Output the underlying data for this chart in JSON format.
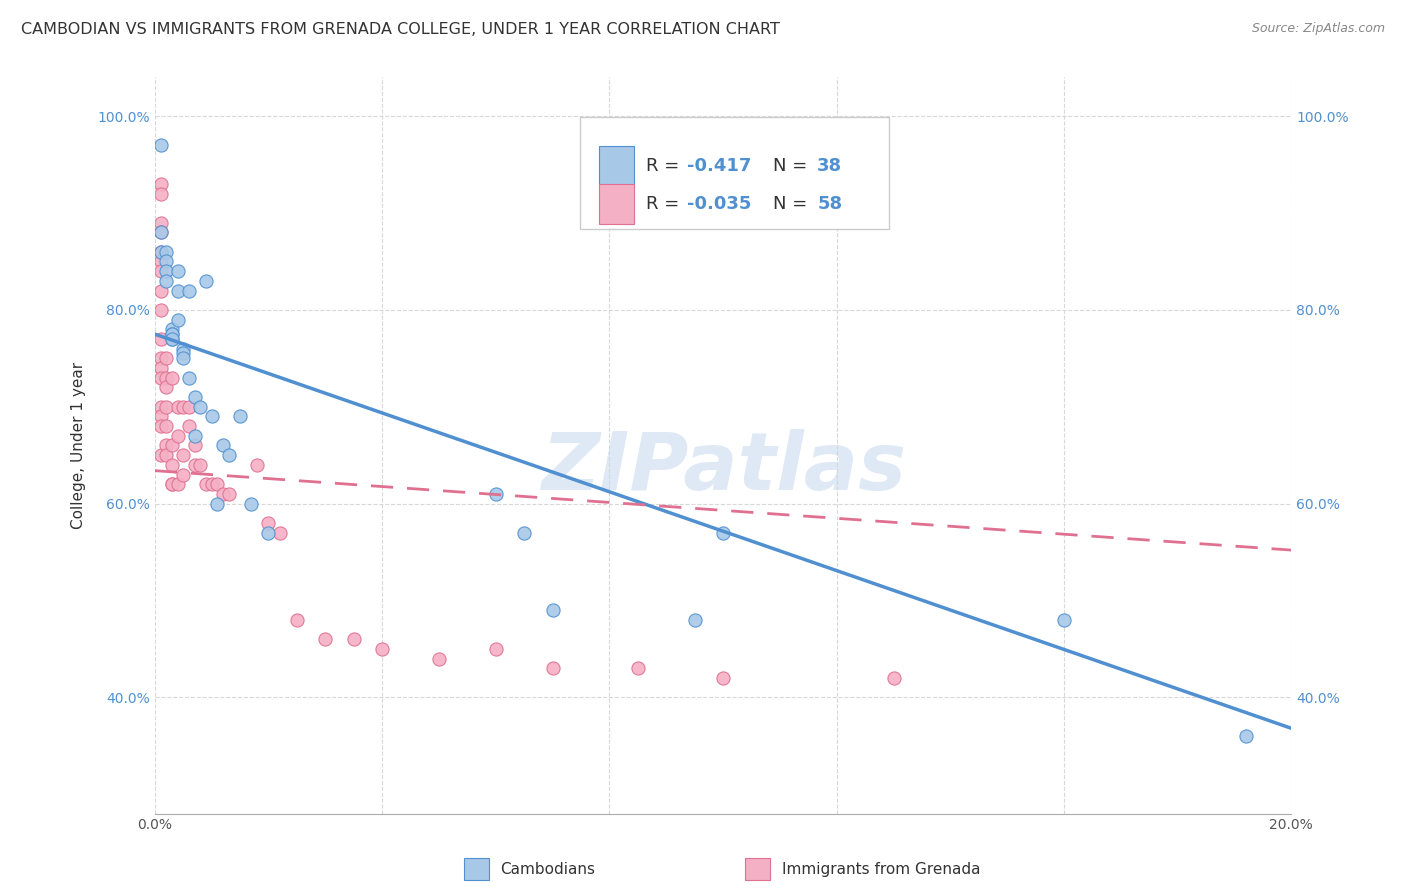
{
  "title": "CAMBODIAN VS IMMIGRANTS FROM GRENADA COLLEGE, UNDER 1 YEAR CORRELATION CHART",
  "source": "Source: ZipAtlas.com",
  "ylabel": "College, Under 1 year",
  "xlim": [
    0.0,
    0.2
  ],
  "ylim": [
    0.28,
    1.04
  ],
  "x_ticks": [
    0.0,
    0.04,
    0.08,
    0.12,
    0.16,
    0.2
  ],
  "x_tick_labels": [
    "0.0%",
    "",
    "",
    "",
    "",
    "20.0%"
  ],
  "y_ticks": [
    0.4,
    0.6,
    0.8,
    1.0
  ],
  "y_tick_labels": [
    "40.0%",
    "60.0%",
    "80.0%",
    "100.0%"
  ],
  "cambodian_color": "#a8c8e8",
  "grenada_color": "#f4b0c4",
  "cambodian_line_color": "#5090d0",
  "grenada_line_color": "#e07090",
  "background_color": "#ffffff",
  "grid_color": "#d8d8d8",
  "watermark": "ZIPatlas",
  "camb_trend_x0": 0.0,
  "camb_trend_y0": 0.775,
  "camb_trend_x1": 0.2,
  "camb_trend_y1": 0.368,
  "gren_trend_x0": 0.0,
  "gren_trend_y0": 0.634,
  "gren_trend_x1": 0.2,
  "gren_trend_y1": 0.552,
  "cambodian_x": [
    0.001,
    0.001,
    0.001,
    0.002,
    0.002,
    0.002,
    0.002,
    0.003,
    0.003,
    0.003,
    0.003,
    0.003,
    0.004,
    0.004,
    0.004,
    0.005,
    0.005,
    0.005,
    0.006,
    0.006,
    0.007,
    0.007,
    0.008,
    0.009,
    0.01,
    0.011,
    0.012,
    0.013,
    0.015,
    0.017,
    0.02,
    0.06,
    0.065,
    0.07,
    0.095,
    0.1,
    0.16,
    0.192
  ],
  "cambodian_y": [
    0.97,
    0.88,
    0.86,
    0.86,
    0.85,
    0.84,
    0.83,
    0.78,
    0.77,
    0.775,
    0.775,
    0.77,
    0.84,
    0.82,
    0.79,
    0.76,
    0.755,
    0.75,
    0.82,
    0.73,
    0.71,
    0.67,
    0.7,
    0.83,
    0.69,
    0.6,
    0.66,
    0.65,
    0.69,
    0.6,
    0.57,
    0.61,
    0.57,
    0.49,
    0.48,
    0.57,
    0.48,
    0.36
  ],
  "grenada_x": [
    0.001,
    0.001,
    0.001,
    0.001,
    0.001,
    0.001,
    0.001,
    0.001,
    0.001,
    0.001,
    0.001,
    0.001,
    0.001,
    0.001,
    0.001,
    0.001,
    0.001,
    0.002,
    0.002,
    0.002,
    0.002,
    0.002,
    0.002,
    0.002,
    0.003,
    0.003,
    0.003,
    0.003,
    0.003,
    0.004,
    0.004,
    0.004,
    0.005,
    0.005,
    0.005,
    0.006,
    0.006,
    0.007,
    0.007,
    0.008,
    0.009,
    0.01,
    0.011,
    0.012,
    0.013,
    0.018,
    0.02,
    0.022,
    0.025,
    0.03,
    0.035,
    0.04,
    0.05,
    0.06,
    0.07,
    0.085,
    0.1,
    0.13
  ],
  "grenada_y": [
    0.93,
    0.92,
    0.89,
    0.88,
    0.86,
    0.85,
    0.84,
    0.82,
    0.8,
    0.77,
    0.75,
    0.74,
    0.73,
    0.7,
    0.69,
    0.68,
    0.65,
    0.75,
    0.73,
    0.72,
    0.7,
    0.68,
    0.66,
    0.65,
    0.73,
    0.66,
    0.64,
    0.62,
    0.62,
    0.7,
    0.67,
    0.62,
    0.7,
    0.65,
    0.63,
    0.7,
    0.68,
    0.66,
    0.64,
    0.64,
    0.62,
    0.62,
    0.62,
    0.61,
    0.61,
    0.64,
    0.58,
    0.57,
    0.48,
    0.46,
    0.46,
    0.45,
    0.44,
    0.45,
    0.43,
    0.43,
    0.42,
    0.42
  ],
  "title_fontsize": 11.5,
  "axis_label_fontsize": 11,
  "tick_fontsize": 10,
  "legend_fontsize": 13
}
